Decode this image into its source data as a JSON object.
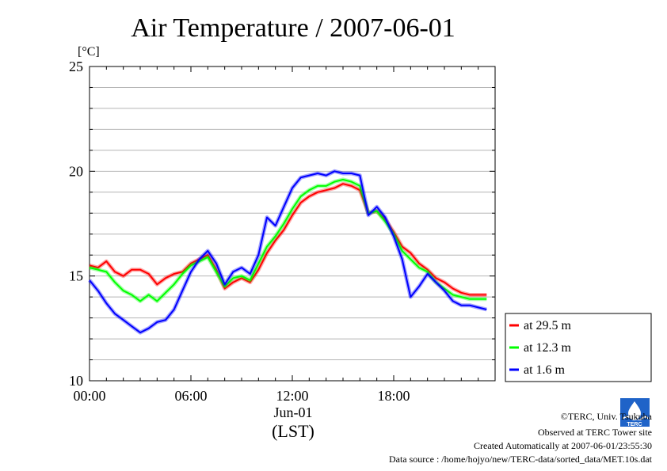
{
  "chart_data": {
    "type": "line",
    "title": "Air Temperature / 2007-06-01",
    "ylabel": "[°C]",
    "ylim": [
      10,
      25
    ],
    "yticks": [
      10,
      15,
      20,
      25
    ],
    "xlim": [
      0,
      24
    ],
    "xticks": [
      {
        "value": 0,
        "label": "00:00"
      },
      {
        "value": 6,
        "label": "06:00"
      },
      {
        "value": 12,
        "label": "12:00"
      },
      {
        "value": 18,
        "label": "18:00"
      }
    ],
    "date_label": "Jun-01",
    "xlabel": "(LST)",
    "grid": true,
    "legend_position": "right",
    "x": [
      0,
      0.5,
      1,
      1.5,
      2,
      2.5,
      3,
      3.5,
      4,
      4.5,
      5,
      5.5,
      6,
      6.5,
      7,
      7.5,
      8,
      8.5,
      9,
      9.5,
      10,
      10.5,
      11,
      11.5,
      12,
      12.5,
      13,
      13.5,
      14,
      14.5,
      15,
      15.5,
      16,
      16.5,
      17,
      17.5,
      18,
      18.5,
      19,
      19.5,
      20,
      20.5,
      21,
      21.5,
      22,
      22.5,
      23,
      23.5
    ],
    "series": [
      {
        "name": "at 29.5 m",
        "color": "#ff0000",
        "values": [
          15.5,
          15.4,
          15.7,
          15.2,
          15.0,
          15.3,
          15.3,
          15.1,
          14.6,
          14.9,
          15.1,
          15.2,
          15.6,
          15.8,
          16.0,
          15.3,
          14.4,
          14.7,
          14.9,
          14.7,
          15.3,
          16.1,
          16.7,
          17.2,
          17.9,
          18.5,
          18.8,
          19.0,
          19.1,
          19.2,
          19.4,
          19.3,
          19.1,
          18.0,
          18.1,
          17.7,
          17.1,
          16.4,
          16.1,
          15.6,
          15.3,
          14.9,
          14.7,
          14.4,
          14.2,
          14.1,
          14.1,
          14.1
        ]
      },
      {
        "name": "at 12.3 m",
        "color": "#00ff00",
        "values": [
          15.4,
          15.3,
          15.2,
          14.7,
          14.3,
          14.1,
          13.8,
          14.1,
          13.8,
          14.2,
          14.6,
          15.1,
          15.5,
          15.7,
          15.9,
          15.2,
          14.5,
          14.9,
          15.0,
          14.8,
          15.6,
          16.4,
          16.9,
          17.5,
          18.2,
          18.8,
          19.1,
          19.3,
          19.3,
          19.5,
          19.6,
          19.5,
          19.3,
          18.0,
          18.1,
          17.6,
          17.0,
          16.2,
          15.8,
          15.4,
          15.2,
          14.7,
          14.4,
          14.1,
          14.0,
          13.9,
          13.9,
          13.9
        ]
      },
      {
        "name": "at 1.6 m",
        "color": "#0000ff",
        "values": [
          14.8,
          14.3,
          13.7,
          13.2,
          12.9,
          12.6,
          12.3,
          12.5,
          12.8,
          12.9,
          13.4,
          14.3,
          15.2,
          15.8,
          16.2,
          15.6,
          14.6,
          15.2,
          15.4,
          15.1,
          16.0,
          17.8,
          17.4,
          18.3,
          19.2,
          19.7,
          19.8,
          19.9,
          19.8,
          20.0,
          19.9,
          19.9,
          19.8,
          17.9,
          18.3,
          17.8,
          16.9,
          15.8,
          14.0,
          14.5,
          15.1,
          14.7,
          14.3,
          13.8,
          13.6,
          13.6,
          13.5,
          13.4
        ]
      }
    ]
  },
  "credits": {
    "copyright": "©TERC, Univ. Tsukuba",
    "site": "Observed at TERC Tower site",
    "created": "Created Automatically at 2007-06-01/23:55:30",
    "source": "Data source : /home/hojyo/new/TERC-data/sorted_data/MET.10s.dat",
    "logo_text": "TERC"
  }
}
